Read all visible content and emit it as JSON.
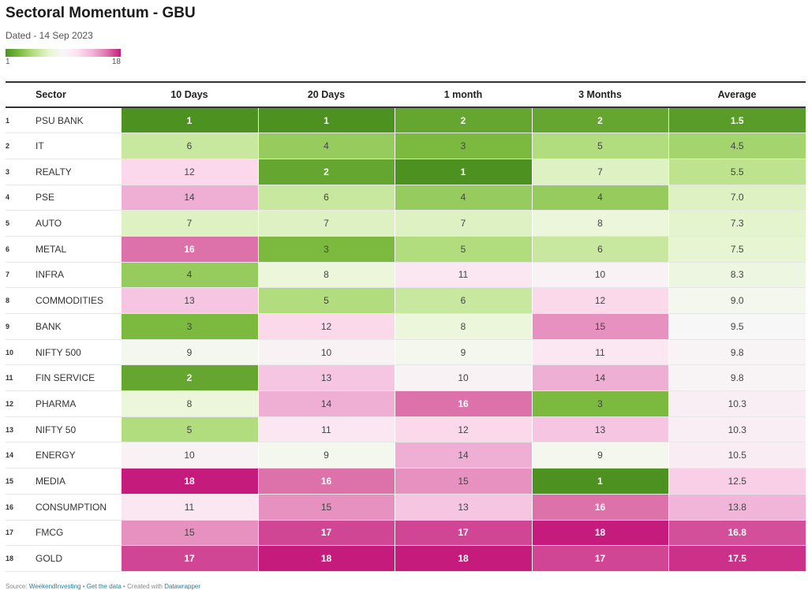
{
  "header": {
    "title": "Sectoral Momentum - GBU",
    "subtitle": "Dated - 14 Sep 2023"
  },
  "legend": {
    "min_label": "1",
    "max_label": "18"
  },
  "colors": {
    "scale": [
      "#4d9221",
      "#7fbc41",
      "#b8e186",
      "#e6f5d0",
      "#f7f7f7",
      "#fde0ef",
      "#f1b6da",
      "#de77ae",
      "#c51b7d"
    ],
    "dark_text": "#444444",
    "light_text": "#ffffff"
  },
  "table": {
    "columns": [
      "Sector",
      "10 Days",
      "20 Days",
      "1 month",
      "3 Months",
      "Average"
    ]
  },
  "chart_data": {
    "type": "table",
    "title": "Sectoral Momentum - GBU",
    "subtitle": "Dated - 14 Sep 2023",
    "scale_range": [
      1,
      18
    ],
    "rows": [
      {
        "rank": "1",
        "sector": "PSU BANK",
        "values": [
          1,
          1,
          2,
          2
        ],
        "average": "1.5"
      },
      {
        "rank": "2",
        "sector": "IT",
        "values": [
          6,
          4,
          3,
          5
        ],
        "average": "4.5"
      },
      {
        "rank": "3",
        "sector": "REALTY",
        "values": [
          12,
          2,
          1,
          7
        ],
        "average": "5.5"
      },
      {
        "rank": "4",
        "sector": "PSE",
        "values": [
          14,
          6,
          4,
          4
        ],
        "average": "7.0"
      },
      {
        "rank": "5",
        "sector": "AUTO",
        "values": [
          7,
          7,
          7,
          8
        ],
        "average": "7.3"
      },
      {
        "rank": "6",
        "sector": "METAL",
        "values": [
          16,
          3,
          5,
          6
        ],
        "average": "7.5"
      },
      {
        "rank": "7",
        "sector": "INFRA",
        "values": [
          4,
          8,
          11,
          10
        ],
        "average": "8.3"
      },
      {
        "rank": "8",
        "sector": "COMMODITIES",
        "values": [
          13,
          5,
          6,
          12
        ],
        "average": "9.0"
      },
      {
        "rank": "9",
        "sector": "BANK",
        "values": [
          3,
          12,
          8,
          15
        ],
        "average": "9.5"
      },
      {
        "rank": "10",
        "sector": "NIFTY 500",
        "values": [
          9,
          10,
          9,
          11
        ],
        "average": "9.8"
      },
      {
        "rank": "11",
        "sector": "FIN SERVICE",
        "values": [
          2,
          13,
          10,
          14
        ],
        "average": "9.8"
      },
      {
        "rank": "12",
        "sector": "PHARMA",
        "values": [
          8,
          14,
          16,
          3
        ],
        "average": "10.3"
      },
      {
        "rank": "13",
        "sector": "NIFTY 50",
        "values": [
          5,
          11,
          12,
          13
        ],
        "average": "10.3"
      },
      {
        "rank": "14",
        "sector": "ENERGY",
        "values": [
          10,
          9,
          14,
          9
        ],
        "average": "10.5"
      },
      {
        "rank": "15",
        "sector": "MEDIA",
        "values": [
          18,
          16,
          15,
          1
        ],
        "average": "12.5"
      },
      {
        "rank": "16",
        "sector": "CONSUMPTION",
        "values": [
          11,
          15,
          13,
          16
        ],
        "average": "13.8"
      },
      {
        "rank": "17",
        "sector": "FMCG",
        "values": [
          15,
          17,
          17,
          18
        ],
        "average": "16.8"
      },
      {
        "rank": "18",
        "sector": "GOLD",
        "values": [
          17,
          18,
          18,
          17
        ],
        "average": "17.5"
      }
    ]
  },
  "footer": {
    "source_prefix": "Source:",
    "source_link": "WeekendInvesting",
    "separator": "•",
    "get_data": "Get the data",
    "created_with": "Created with",
    "datawrapper": "Datawrapper"
  }
}
